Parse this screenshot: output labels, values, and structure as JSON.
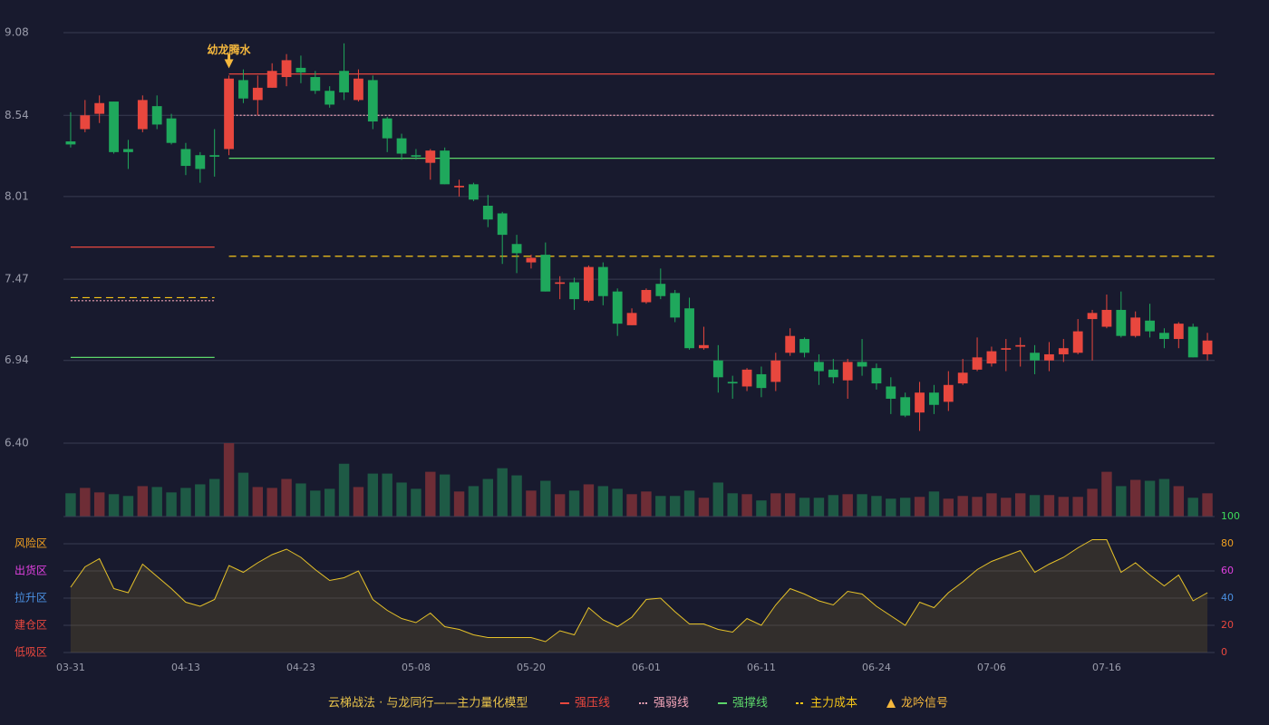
{
  "chart_data": {
    "type": "candlestick",
    "title": "云梯战法 · 与龙同行——主力量化模型",
    "up_color": "#e8473e",
    "down_color": "#1fa85c",
    "up_volume_color": "#6e2d36",
    "down_volume_color": "#1e5a45",
    "grid": true,
    "categories": [
      "03-31",
      null,
      null,
      null,
      null,
      null,
      null,
      null,
      "04-13",
      null,
      null,
      null,
      null,
      null,
      null,
      null,
      "04-23",
      null,
      null,
      null,
      null,
      null,
      null,
      null,
      "05-08",
      null,
      null,
      null,
      null,
      null,
      null,
      null,
      "05-20",
      null,
      null,
      null,
      null,
      null,
      null,
      null,
      "06-01",
      null,
      null,
      null,
      null,
      null,
      null,
      null,
      "06-11",
      null,
      null,
      null,
      null,
      null,
      null,
      null,
      "06-24",
      null,
      null,
      null,
      null,
      null,
      null,
      null,
      "07-06",
      null,
      null,
      null,
      null,
      null,
      null,
      null,
      "07-16",
      null,
      null,
      null,
      null,
      null,
      null,
      null
    ],
    "open": [
      8.37,
      8.45,
      8.55,
      8.63,
      8.32,
      8.45,
      8.6,
      8.52,
      8.32,
      8.28,
      8.28,
      8.32,
      8.77,
      8.64,
      8.72,
      8.79,
      8.85,
      8.79,
      8.7,
      8.83,
      8.64,
      8.77,
      8.52,
      8.39,
      8.28,
      8.23,
      8.31,
      8.07,
      8.09,
      7.95,
      7.9,
      7.7,
      7.58,
      7.63,
      7.44,
      7.45,
      7.33,
      7.55,
      7.39,
      7.17,
      7.32,
      7.44,
      7.38,
      7.28,
      7.02,
      6.94,
      6.8,
      6.77,
      6.85,
      6.8,
      6.99,
      7.08,
      6.93,
      6.88,
      6.81,
      6.93,
      6.89,
      6.77,
      6.7,
      6.6,
      6.73,
      6.67,
      6.79,
      6.88,
      6.92,
      7.01,
      7.03,
      6.99,
      6.94,
      6.98,
      6.99,
      7.21,
      7.16,
      7.27,
      7.1,
      7.2,
      7.12,
      7.08,
      7.16,
      6.98
    ],
    "close": [
      8.35,
      8.54,
      8.62,
      8.3,
      8.3,
      8.64,
      8.48,
      8.36,
      8.21,
      8.19,
      8.27,
      8.78,
      8.65,
      8.72,
      8.83,
      8.9,
      8.82,
      8.7,
      8.61,
      8.69,
      8.78,
      8.5,
      8.39,
      8.29,
      8.27,
      8.31,
      8.09,
      8.08,
      7.99,
      7.86,
      7.76,
      7.64,
      7.61,
      7.39,
      7.45,
      7.34,
      7.55,
      7.36,
      7.18,
      7.25,
      7.4,
      7.36,
      7.22,
      7.02,
      7.04,
      6.83,
      6.79,
      6.88,
      6.76,
      6.94,
      7.1,
      6.99,
      6.87,
      6.83,
      6.93,
      6.9,
      6.79,
      6.69,
      6.58,
      6.73,
      6.65,
      6.78,
      6.86,
      6.96,
      7.0,
      7.02,
      7.04,
      6.94,
      6.98,
      7.02,
      7.13,
      7.25,
      7.27,
      7.1,
      7.22,
      7.13,
      7.08,
      7.18,
      6.96,
      7.07
    ],
    "high": [
      8.56,
      8.64,
      8.67,
      8.63,
      8.38,
      8.67,
      8.67,
      8.55,
      8.36,
      8.3,
      8.45,
      8.8,
      8.84,
      8.8,
      8.88,
      8.94,
      8.93,
      8.83,
      8.73,
      9.01,
      8.84,
      8.8,
      8.53,
      8.42,
      8.32,
      8.32,
      8.33,
      8.12,
      8.1,
      8.02,
      7.91,
      7.76,
      7.63,
      7.71,
      7.49,
      7.48,
      7.56,
      7.58,
      7.41,
      7.28,
      7.41,
      7.54,
      7.4,
      7.35,
      7.16,
      7.04,
      6.84,
      6.89,
      6.9,
      6.99,
      7.15,
      7.09,
      6.98,
      6.95,
      6.95,
      7.08,
      6.92,
      6.83,
      6.73,
      6.8,
      6.78,
      6.87,
      6.95,
      7.09,
      7.03,
      7.08,
      7.09,
      7.04,
      7.06,
      7.08,
      7.21,
      7.27,
      7.37,
      7.39,
      7.26,
      7.31,
      7.15,
      7.19,
      7.18,
      7.12
    ],
    "low": [
      8.33,
      8.43,
      8.49,
      8.29,
      8.19,
      8.43,
      8.45,
      8.35,
      8.15,
      8.1,
      8.14,
      8.28,
      8.62,
      8.54,
      8.72,
      8.73,
      8.75,
      8.68,
      8.59,
      8.64,
      8.63,
      8.45,
      8.3,
      8.25,
      8.25,
      8.12,
      8.09,
      8.01,
      7.98,
      7.81,
      7.57,
      7.51,
      7.54,
      7.39,
      7.34,
      7.27,
      7.32,
      7.3,
      7.1,
      7.17,
      7.31,
      7.34,
      7.19,
      7.01,
      7.01,
      6.73,
      6.69,
      6.74,
      6.7,
      6.74,
      6.97,
      6.96,
      6.78,
      6.79,
      6.69,
      6.84,
      6.75,
      6.59,
      6.57,
      6.48,
      6.59,
      6.61,
      6.78,
      6.87,
      6.9,
      6.87,
      6.9,
      6.85,
      6.87,
      6.93,
      6.98,
      6.94,
      7.15,
      7.09,
      7.09,
      7.09,
      7.02,
      7.02,
      6.96,
      6.94
    ],
    "volume": [
      26,
      32,
      27,
      25,
      23,
      34,
      33,
      27,
      32,
      36,
      42,
      82,
      49,
      33,
      32,
      42,
      37,
      29,
      31,
      59,
      33,
      48,
      48,
      38,
      31,
      50,
      47,
      28,
      34,
      42,
      54,
      46,
      29,
      40,
      25,
      29,
      36,
      34,
      31,
      25,
      28,
      23,
      23,
      29,
      21,
      38,
      26,
      25,
      18,
      26,
      26,
      21,
      21,
      24,
      25,
      25,
      23,
      20,
      21,
      22,
      28,
      20,
      23,
      22,
      26,
      21,
      26,
      24,
      24,
      22,
      22,
      31,
      50,
      34,
      41,
      40,
      42,
      34,
      21,
      26
    ],
    "ylim": [
      6.4,
      9.08
    ],
    "yticks": [
      {
        "value": 6.4,
        "label": "6.40"
      },
      6.94,
      7.47,
      8.01,
      8.54,
      9.08
    ],
    "levels": [
      {
        "name": "强压线",
        "color": "#e8473e",
        "style": "solid",
        "segments": [
          {
            "start": 0,
            "end": 10,
            "value": 7.68
          },
          {
            "start": 11,
            "end": 79,
            "value": 8.81
          }
        ]
      },
      {
        "name": "强弱线",
        "color": "#f2a5b8",
        "style": "dotted",
        "segments": [
          {
            "start": 0,
            "end": 10,
            "value": 7.33
          },
          {
            "start": 11,
            "end": 79,
            "value": 8.54
          }
        ]
      },
      {
        "name": "强撑线",
        "color": "#5cd66a",
        "style": "solid",
        "segments": [
          {
            "start": 0,
            "end": 10,
            "value": 6.96
          },
          {
            "start": 11,
            "end": 79,
            "value": 8.26
          }
        ]
      },
      {
        "name": "主力成本",
        "color": "#f5c518",
        "style": "dashed",
        "segments": [
          {
            "start": 0,
            "end": 10,
            "value": 7.35
          },
          {
            "start": 11,
            "end": 79,
            "value": 7.62
          }
        ]
      }
    ],
    "signal_name": "龙吟信号",
    "signal_color": "#f5b83d",
    "signals": [
      {
        "index": 11,
        "label": "幼龙腾水"
      }
    ],
    "indicator": {
      "color": "#e6c229",
      "values": [
        48,
        63,
        69,
        47,
        44,
        65,
        56,
        47,
        37,
        34,
        39,
        64,
        59,
        66,
        72,
        76,
        70,
        61,
        53,
        55,
        60,
        39,
        31,
        25,
        22,
        29,
        19,
        17,
        13,
        11,
        11,
        11,
        11,
        8,
        16,
        13,
        33,
        24,
        19,
        26,
        39,
        40,
        30,
        21,
        21,
        17,
        15,
        25,
        20,
        35,
        47,
        43,
        38,
        35,
        45,
        43,
        34,
        27,
        20,
        37,
        33,
        44,
        52,
        61,
        67,
        71,
        75,
        59,
        65,
        70,
        77,
        83,
        83,
        59,
        66,
        57,
        49,
        57,
        38,
        44
      ],
      "ylim": [
        0,
        100
      ],
      "yticks": [
        0,
        20,
        40,
        60,
        80,
        100
      ],
      "ytick_colors": [
        "#e8473e",
        "#e8473e",
        "#4a90e2",
        "#e040e0",
        "#f0a020",
        "#3ddc5a"
      ],
      "zones": [
        {
          "name": "低吸区",
          "value": 0,
          "color": "#e8473e"
        },
        {
          "name": "建仓区",
          "value": 20,
          "color": "#e8473e"
        },
        {
          "name": "拉升区",
          "value": 40,
          "color": "#4a90e2"
        },
        {
          "name": "出货区",
          "value": 60,
          "color": "#e040e0"
        },
        {
          "name": "风险区",
          "value": 80,
          "color": "#f0a020"
        }
      ]
    }
  }
}
